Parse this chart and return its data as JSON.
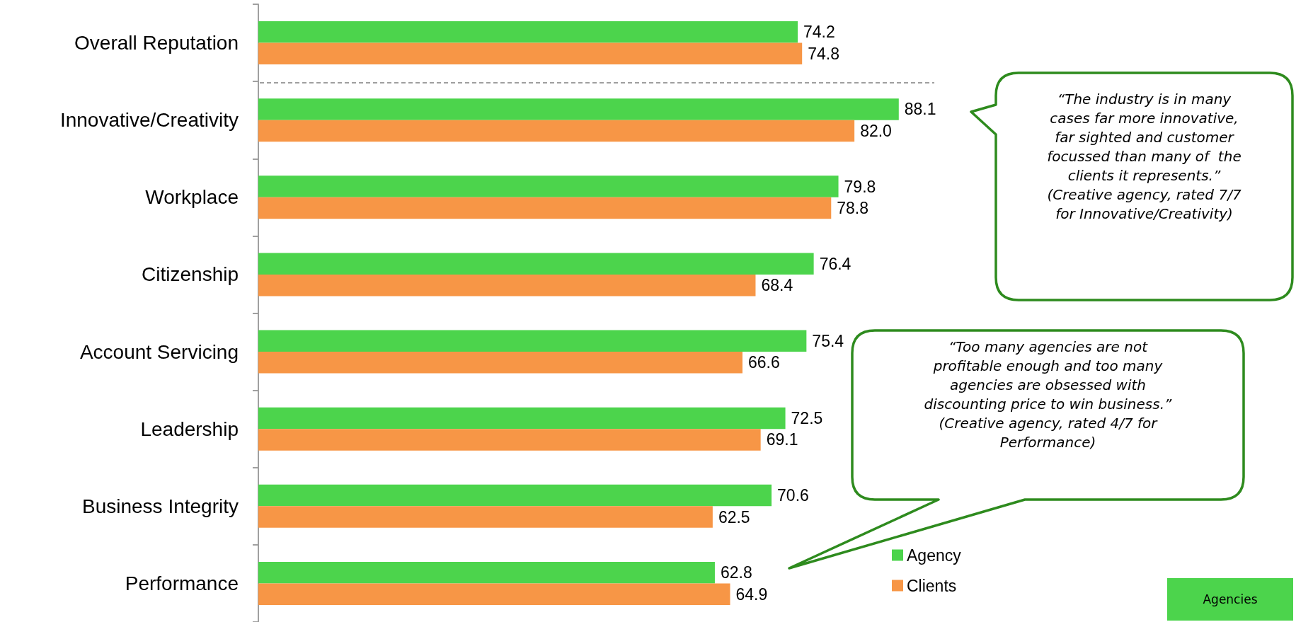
{
  "chart_data": {
    "type": "bar",
    "orientation": "horizontal",
    "categories": [
      "Overall Reputation",
      "Innovative/Creativity",
      "Workplace",
      "Citizenship",
      "Account Servicing",
      "Leadership",
      "Business Integrity",
      "Performance"
    ],
    "series": [
      {
        "name": "Agency",
        "color": "#4cd44c",
        "values": [
          74.2,
          88.1,
          79.8,
          76.4,
          75.4,
          72.5,
          70.6,
          62.8
        ],
        "value_labels": [
          "74.2",
          "88.1",
          "79.8",
          "76.4",
          "75.4",
          "72.5",
          "70.6",
          "62.8"
        ]
      },
      {
        "name": "Clients",
        "color": "#f79646",
        "values": [
          74.8,
          82.0,
          78.8,
          68.4,
          66.6,
          69.1,
          62.5,
          64.9
        ],
        "value_labels": [
          "74.8",
          "82.0",
          "78.8",
          "68.4",
          "66.6",
          "69.1",
          "62.5",
          "64.9"
        ]
      }
    ],
    "annotations": [
      "“The industry is in many\ncases far more innovative,\nfar sighted and customer\nfocussed than many of  the\nclients it represents.”\n(Creative agency, rated 7/7\nfor Innovative/Creativity)",
      "“Too many agencies are not\nprofitable enough and too many\nagencies are obsessed with\ndiscounting price to win business.”\n(Creative agency, rated 4/7 for\nPerformance)",
      "Agencies"
    ],
    "tick_labels": "y",
    "grid": false,
    "legend": "bottom right"
  }
}
